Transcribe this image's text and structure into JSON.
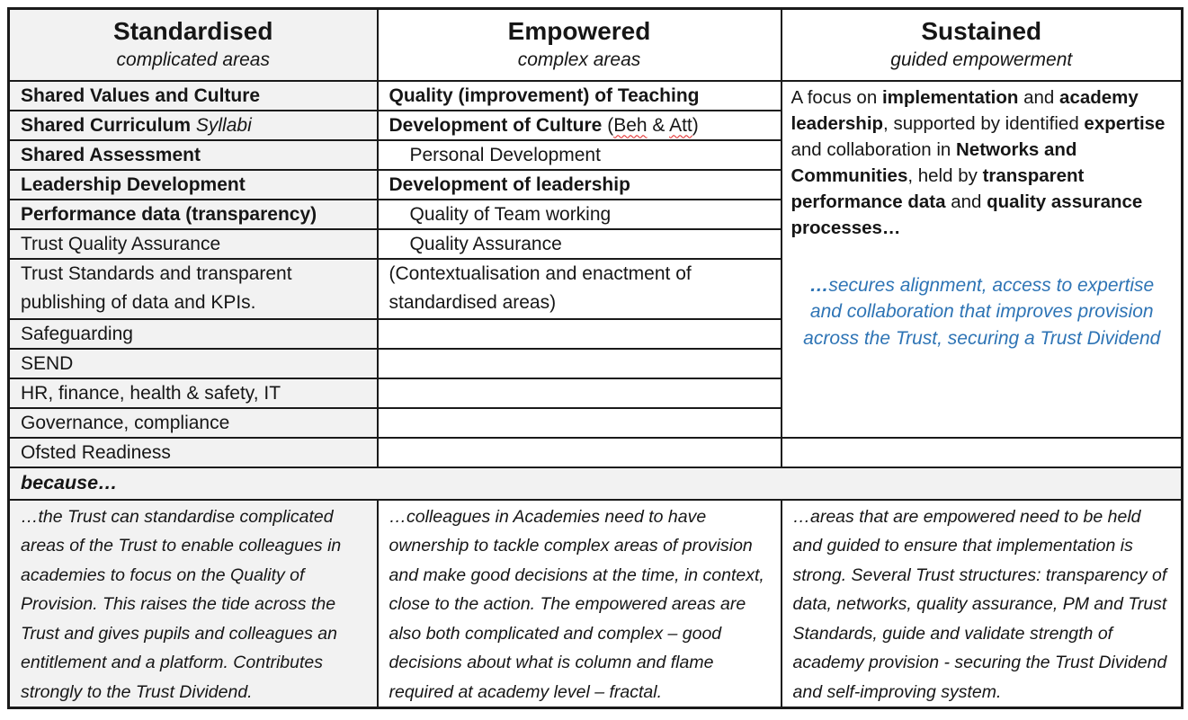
{
  "columns": [
    {
      "title": "Standardised",
      "subtitle": "complicated areas"
    },
    {
      "title": "Empowered",
      "subtitle": "complex areas"
    },
    {
      "title": "Sustained",
      "subtitle": "guided empowerment"
    }
  ],
  "standardised": {
    "rows": [
      {
        "bold": "Shared Values and Culture"
      },
      {
        "bold": "Shared Curriculum",
        "italic": " Syllabi"
      },
      {
        "bold": "Shared Assessment"
      },
      {
        "bold": "Leadership Development"
      },
      {
        "bold": "Performance data (transparency)"
      },
      {
        "text": "Trust Quality Assurance"
      },
      {
        "text": "Trust Standards and transparent publishing of data and KPIs."
      },
      {
        "text": "Safeguarding"
      },
      {
        "text": "SEND"
      },
      {
        "text": "HR, finance, health & safety, IT"
      },
      {
        "text": "Governance, compliance"
      },
      {
        "text": "Ofsted Readiness"
      }
    ]
  },
  "empowered": {
    "rows": [
      {
        "bold": "Quality (improvement) of Teaching"
      },
      {
        "culture": {
          "bold": "Development of Culture",
          "open": " (",
          "beh": "Beh",
          "amp": " & ",
          "att": "Att",
          "close": ")"
        }
      },
      {
        "indented": "Personal Development"
      },
      {
        "bold": "Development of leadership"
      },
      {
        "indented": "Quality of Team working"
      },
      {
        "indented": "Quality Assurance"
      },
      {
        "text": "(Contextualisation and enactment of standardised areas)"
      }
    ]
  },
  "sustained": {
    "paragraph": [
      {
        "t": "A focus on "
      },
      {
        "t": "implementation",
        "b": 1
      },
      {
        "t": " and "
      },
      {
        "t": "academy leadership",
        "b": 1
      },
      {
        "t": ", supported by identified "
      },
      {
        "t": "expertise",
        "b": 1
      },
      {
        "t": " and collaboration in "
      },
      {
        "t": "Networks and Communities",
        "b": 1
      },
      {
        "t": ", held by "
      },
      {
        "t": "transparent performance data",
        "b": 1
      },
      {
        "t": " and "
      },
      {
        "t": "quality assurance processes…",
        "b": 1
      }
    ],
    "blue_note": [
      {
        "t": "…",
        "b": 1
      },
      {
        "t": "secures alignment, access to expertise and collaboration that improves provision across the Trust, securing a Trust Dividend"
      }
    ]
  },
  "because_label": "because…",
  "rationale": [
    {
      "text": "…the Trust can standardise complicated areas of the Trust to enable colleagues in academies to focus on the Quality of Provision. This raises the tide across the Trust and gives pupils and colleagues an entitlement and a platform. Contributes strongly to the Trust Dividend."
    },
    {
      "text": "…colleagues in Academies need to have ownership to tackle complex areas of provision and make good decisions at the time, in context, close to the action. The empowered areas are also both complicated and complex – good decisions about what is column and flame required at academy level – fractal."
    },
    {
      "text": "…areas that are empowered need to be held and guided to ensure that implementation is strong. Several Trust structures: transparency of data, networks, quality assurance, PM and Trust Standards, guide and validate strength of academy provision - securing the Trust Dividend and self-improving system."
    }
  ],
  "colors": {
    "row_shade": "#F2F2F2",
    "blue_text": "#2E74B5",
    "squiggle_red": "#E02020",
    "border": "#1a1a1a"
  }
}
